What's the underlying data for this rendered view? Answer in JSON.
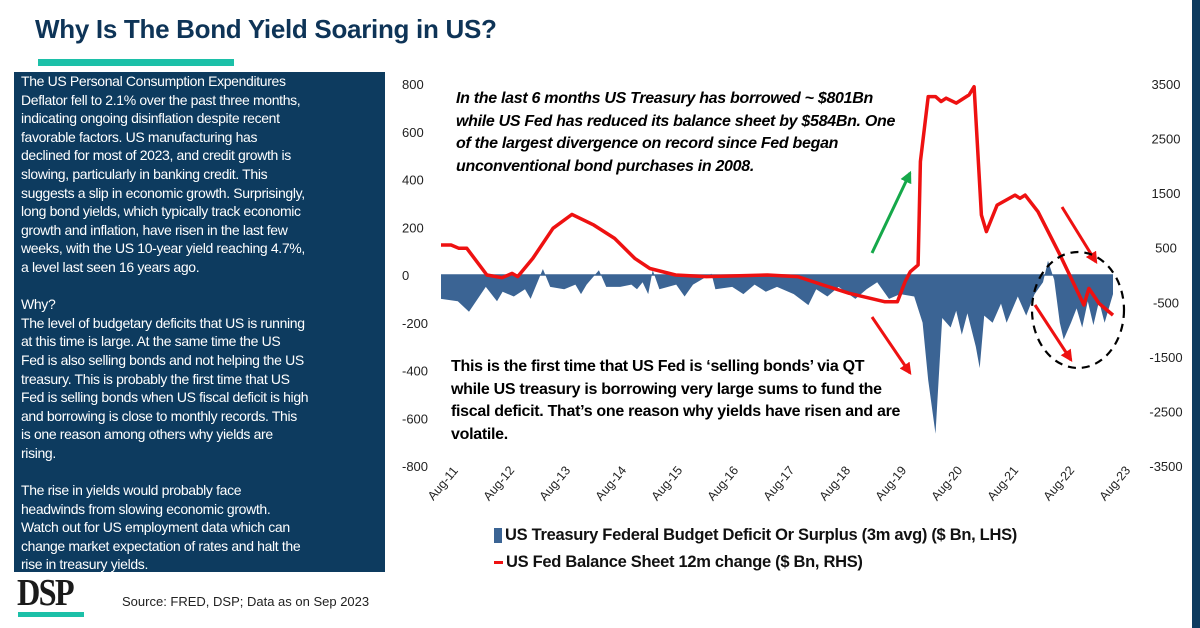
{
  "title": "Why Is The Bond Yield Soaring in US?",
  "panel": {
    "paragraphs": [
      [
        "The US Personal Consumption Expenditures",
        "Deflator fell to 2.1% over the past three months,",
        "indicating ongoing disinflation despite recent",
        "favorable factors. US manufacturing has",
        "declined for most of 2023, and credit growth is",
        "slowing, particularly in banking credit. This",
        "suggests a slip in economic growth. Surprisingly,",
        "long bond yields, which typically track economic",
        "growth and inflation, have risen in the last few",
        "weeks, with the US 10-year yield reaching 4.7%,",
        "a level last seen 16 years ago."
      ],
      [
        "Why?",
        "The level of budgetary deficits that US is running",
        "at this time is large. At the same time the US",
        "Fed is also selling bonds and not helping the US",
        "treasury. This is probably the first time that US",
        "Fed is selling bonds when US fiscal deficit is high",
        "and borrowing is close to monthly records. This",
        "is one reason among others why yields are",
        "rising."
      ],
      [
        "The rise in yields would probably face",
        "headwinds from slowing economic growth.",
        "Watch out for US employment data which can",
        "change market expectation of rates and halt the",
        "rise in treasury yields."
      ]
    ]
  },
  "annotations": {
    "top": [
      "In the last 6 months US Treasury has borrowed ~ $801Bn",
      "while US Fed has reduced its balance sheet by $584Bn. One",
      "of the largest divergence on record since Fed began",
      "unconventional bond purchases in 2008."
    ],
    "bottom": [
      "This is the first time that US Fed is ‘selling bonds’ via QT",
      "while US treasury is borrowing very large sums to fund the",
      "fiscal deficit. That’s one reason why yields have risen and are",
      "volatile."
    ]
  },
  "footer": {
    "logo": "DSP",
    "source": "Source: FRED, DSP; Data as on Sep 2023"
  },
  "colors": {
    "navy": "#0d3b5f",
    "teal": "#1cc0a8",
    "area": "#3b6494",
    "line": "#ee1111",
    "green": "#15a84a"
  },
  "chart_data": {
    "type": "area+line",
    "title": "Why Is The Bond Yield Soaring in US?",
    "x_note": "years since Aug-2011",
    "x_tick_labels": [
      "Aug-11",
      "Aug-12",
      "Aug-13",
      "Aug-14",
      "Aug-15",
      "Aug-16",
      "Aug-17",
      "Aug-18",
      "Aug-19",
      "Aug-20",
      "Aug-21",
      "Aug-22",
      "Aug-23"
    ],
    "y_left": {
      "ticks": [
        800,
        600,
        400,
        200,
        0,
        -200,
        -400,
        -600,
        -800
      ],
      "range": [
        -800,
        800
      ]
    },
    "y_right": {
      "ticks": [
        3500,
        2500,
        1500,
        500,
        -500,
        -1500,
        -2500,
        -3500
      ],
      "range": [
        -3500,
        3500
      ]
    },
    "grid": false,
    "legend_position": "bottom",
    "series": [
      {
        "name": "US Treasury Federal Budget Deficit Or Surplus (3m avg) ($ Bn, LHS)",
        "axis": "left",
        "type": "area",
        "points": [
          [
            0,
            -100
          ],
          [
            0.3,
            -110
          ],
          [
            0.5,
            -154
          ],
          [
            0.8,
            -50
          ],
          [
            1.0,
            -110
          ],
          [
            1.1,
            -70
          ],
          [
            1.3,
            -90
          ],
          [
            1.5,
            -60
          ],
          [
            1.6,
            -100
          ],
          [
            1.82,
            25
          ],
          [
            1.95,
            -50
          ],
          [
            2.2,
            -60
          ],
          [
            2.4,
            -40
          ],
          [
            2.5,
            -80
          ],
          [
            2.6,
            -40
          ],
          [
            2.82,
            20
          ],
          [
            2.95,
            -50
          ],
          [
            3.2,
            -50
          ],
          [
            3.4,
            -40
          ],
          [
            3.5,
            -60
          ],
          [
            3.6,
            -30
          ],
          [
            3.7,
            -80
          ],
          [
            3.78,
            20
          ],
          [
            3.9,
            -60
          ],
          [
            4.2,
            -40
          ],
          [
            4.35,
            -90
          ],
          [
            4.5,
            -40
          ],
          [
            4.83,
            5
          ],
          [
            4.9,
            -60
          ],
          [
            5.2,
            -50
          ],
          [
            5.4,
            -80
          ],
          [
            5.6,
            -40
          ],
          [
            5.8,
            -70
          ],
          [
            6.0,
            -50
          ],
          [
            6.3,
            -80
          ],
          [
            6.56,
            -126
          ],
          [
            6.7,
            -60
          ],
          [
            6.9,
            -90
          ],
          [
            7.1,
            -50
          ],
          [
            7.4,
            -100
          ],
          [
            7.6,
            -60
          ],
          [
            7.79,
            -30
          ],
          [
            8.0,
            -100
          ],
          [
            8.2,
            -80
          ],
          [
            8.45,
            -90
          ],
          [
            8.6,
            -200
          ],
          [
            8.7,
            -440
          ],
          [
            8.83,
            -665
          ],
          [
            8.95,
            -180
          ],
          [
            9.1,
            -220
          ],
          [
            9.2,
            -150
          ],
          [
            9.3,
            -250
          ],
          [
            9.4,
            -160
          ],
          [
            9.55,
            -300
          ],
          [
            9.62,
            -390
          ],
          [
            9.7,
            -170
          ],
          [
            9.85,
            -200
          ],
          [
            10.0,
            -120
          ],
          [
            10.1,
            -200
          ],
          [
            10.3,
            -90
          ],
          [
            10.45,
            -170
          ],
          [
            10.6,
            -80
          ],
          [
            10.75,
            -30
          ],
          [
            10.84,
            60
          ],
          [
            10.95,
            -20
          ],
          [
            11.05,
            -200
          ],
          [
            11.12,
            -270
          ],
          [
            11.25,
            -200
          ],
          [
            11.35,
            -140
          ],
          [
            11.45,
            -220
          ],
          [
            11.55,
            -110
          ],
          [
            11.65,
            -210
          ],
          [
            11.75,
            -110
          ],
          [
            11.85,
            -200
          ],
          [
            12.0,
            -80
          ]
        ]
      },
      {
        "name": "US Fed Balance Sheet 12m change ($ Bn, RHS)",
        "axis": "right",
        "type": "line",
        "points": [
          [
            0,
            550
          ],
          [
            0.18,
            550
          ],
          [
            0.32,
            490
          ],
          [
            0.46,
            490
          ],
          [
            0.82,
            0
          ],
          [
            1.09,
            -50
          ],
          [
            1.27,
            30
          ],
          [
            1.37,
            -30
          ],
          [
            1.64,
            305
          ],
          [
            2.0,
            855
          ],
          [
            2.34,
            1110
          ],
          [
            2.73,
            915
          ],
          [
            3.1,
            670
          ],
          [
            3.46,
            305
          ],
          [
            3.73,
            120
          ],
          [
            4.19,
            0
          ],
          [
            4.74,
            -30
          ],
          [
            5.83,
            0
          ],
          [
            6.37,
            -30
          ],
          [
            6.83,
            -185
          ],
          [
            7.29,
            -335
          ],
          [
            7.92,
            -490
          ],
          [
            8.15,
            -490
          ],
          [
            8.29,
            -120
          ],
          [
            8.38,
            60
          ],
          [
            8.52,
            185
          ],
          [
            8.56,
            2080
          ],
          [
            8.7,
            3270
          ],
          [
            8.83,
            3270
          ],
          [
            8.93,
            3180
          ],
          [
            9.02,
            3240
          ],
          [
            9.2,
            3150
          ],
          [
            9.43,
            3300
          ],
          [
            9.52,
            3450
          ],
          [
            9.65,
            1100
          ],
          [
            9.74,
            795
          ],
          [
            9.93,
            1280
          ],
          [
            10.25,
            1465
          ],
          [
            10.34,
            1405
          ],
          [
            10.43,
            1465
          ],
          [
            10.66,
            1160
          ],
          [
            11.07,
            335
          ],
          [
            11.48,
            -550
          ],
          [
            11.57,
            -245
          ],
          [
            11.75,
            -520
          ],
          [
            12.0,
            -735
          ]
        ]
      }
    ]
  }
}
